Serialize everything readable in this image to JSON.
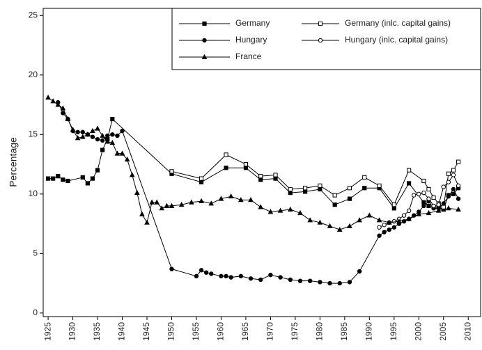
{
  "chart_data": {
    "type": "line",
    "ylabel": "Percentage",
    "xlim": [
      1924,
      2012.5
    ],
    "ylim": [
      -0.3,
      25.6
    ],
    "xticks": [
      1925,
      1930,
      1935,
      1940,
      1945,
      1950,
      1955,
      1960,
      1965,
      1970,
      1975,
      1980,
      1985,
      1990,
      1995,
      2000,
      2005,
      2010
    ],
    "yticks": [
      0,
      5,
      10,
      15,
      20,
      25
    ],
    "grid": false,
    "legend": "top-right",
    "series": [
      {
        "name": "Germany",
        "color": "#000000",
        "marker": "square",
        "filled": true,
        "x": [
          1925,
          1926,
          1927,
          1928,
          1929,
          1932,
          1933,
          1934,
          1935,
          1936,
          1937,
          1938,
          1950,
          1956,
          1961,
          1965,
          1968,
          1971,
          1974,
          1977,
          1980,
          1983,
          1986,
          1989,
          1992,
          1995,
          1998,
          2001,
          2002,
          2003,
          2004,
          2005,
          2006,
          2007,
          2008
        ],
        "values": [
          11.3,
          11.3,
          11.5,
          11.2,
          11.1,
          11.4,
          10.9,
          11.3,
          12.0,
          13.7,
          14.6,
          16.3,
          11.7,
          11.0,
          12.2,
          12.2,
          11.2,
          11.3,
          10.1,
          10.2,
          10.4,
          9.1,
          9.6,
          10.5,
          10.5,
          8.8,
          10.9,
          9.3,
          9.0,
          8.9,
          8.9,
          8.7,
          9.9,
          10.0,
          10.5
        ]
      },
      {
        "name": "Germany (inlc. capital gains)",
        "color": "#000000",
        "marker": "square",
        "filled": false,
        "x": [
          1950,
          1956,
          1961,
          1965,
          1968,
          1971,
          1974,
          1977,
          1980,
          1983,
          1986,
          1989,
          1992,
          1995,
          1998,
          2001,
          2002,
          2003,
          2004,
          2005,
          2006,
          2007,
          2008
        ],
        "values": [
          11.9,
          11.3,
          13.3,
          12.5,
          11.5,
          11.6,
          10.4,
          10.5,
          10.7,
          9.9,
          10.5,
          11.4,
          10.7,
          9.1,
          12.0,
          11.1,
          10.4,
          9.7,
          9.2,
          8.9,
          11.7,
          12.0,
          12.7
        ]
      },
      {
        "name": "Hungary",
        "color": "#000000",
        "marker": "circle",
        "filled": true,
        "x": [
          1927,
          1928,
          1929,
          1930,
          1931,
          1932,
          1933,
          1934,
          1935,
          1936,
          1937,
          1938,
          1939,
          1940,
          1950,
          1955,
          1956,
          1957,
          1958,
          1960,
          1961,
          1962,
          1964,
          1966,
          1968,
          1970,
          1972,
          1974,
          1976,
          1978,
          1980,
          1982,
          1984,
          1986,
          1988,
          1992,
          1993,
          1994,
          1995,
          1996,
          1997,
          1998,
          1999,
          2000,
          2001,
          2002,
          2003,
          2004,
          2005,
          2006,
          2007,
          2008
        ],
        "values": [
          17.7,
          16.8,
          16.3,
          15.3,
          15.2,
          15.2,
          15.0,
          14.8,
          14.6,
          14.5,
          14.9,
          15.0,
          14.9,
          15.3,
          3.7,
          3.1,
          3.6,
          3.4,
          3.3,
          3.1,
          3.1,
          3.0,
          3.1,
          2.9,
          2.8,
          3.2,
          3.0,
          2.8,
          2.7,
          2.7,
          2.6,
          2.5,
          2.5,
          2.6,
          3.5,
          6.5,
          6.8,
          7.0,
          7.2,
          7.5,
          7.7,
          7.9,
          8.2,
          8.5,
          9.0,
          9.4,
          8.8,
          8.8,
          9.2,
          9.8,
          10.4,
          9.6
        ]
      },
      {
        "name": "Hungary (inlc. capital gains)",
        "color": "#000000",
        "marker": "circle",
        "filled": false,
        "x": [
          1992,
          1993,
          1994,
          1995,
          1996,
          1997,
          1998,
          1999,
          2000,
          2001,
          2002,
          2003,
          2004,
          2005,
          2006,
          2007,
          2008
        ],
        "values": [
          7.2,
          7.4,
          7.6,
          7.7,
          7.9,
          8.2,
          8.6,
          9.9,
          10.0,
          10.1,
          9.6,
          9.0,
          9.1,
          10.6,
          11.0,
          11.6,
          10.7
        ]
      },
      {
        "name": "France",
        "color": "#000000",
        "marker": "triangle",
        "filled": true,
        "x": [
          1925,
          1926,
          1927,
          1928,
          1929,
          1930,
          1931,
          1932,
          1933,
          1934,
          1935,
          1936,
          1937,
          1938,
          1939,
          1940,
          1941,
          1942,
          1943,
          1944,
          1945,
          1946,
          1947,
          1948,
          1949,
          1950,
          1952,
          1954,
          1956,
          1958,
          1960,
          1962,
          1964,
          1966,
          1968,
          1970,
          1972,
          1974,
          1976,
          1978,
          1980,
          1982,
          1984,
          1986,
          1988,
          1990,
          1992,
          1994,
          1996,
          1998,
          2000,
          2002,
          2004,
          2006,
          2008
        ],
        "values": [
          18.1,
          17.8,
          17.5,
          17.2,
          16.3,
          15.4,
          14.7,
          14.8,
          15.0,
          15.3,
          15.5,
          14.9,
          14.4,
          14.3,
          13.4,
          13.4,
          12.9,
          11.6,
          10.1,
          8.3,
          7.6,
          9.3,
          9.3,
          8.8,
          9.0,
          9.0,
          9.1,
          9.3,
          9.4,
          9.2,
          9.6,
          9.8,
          9.5,
          9.5,
          8.9,
          8.5,
          8.6,
          8.7,
          8.4,
          7.8,
          7.6,
          7.3,
          7.0,
          7.3,
          7.8,
          8.2,
          7.8,
          7.6,
          7.7,
          7.9,
          8.3,
          8.4,
          8.6,
          8.8,
          8.7
        ]
      }
    ]
  }
}
